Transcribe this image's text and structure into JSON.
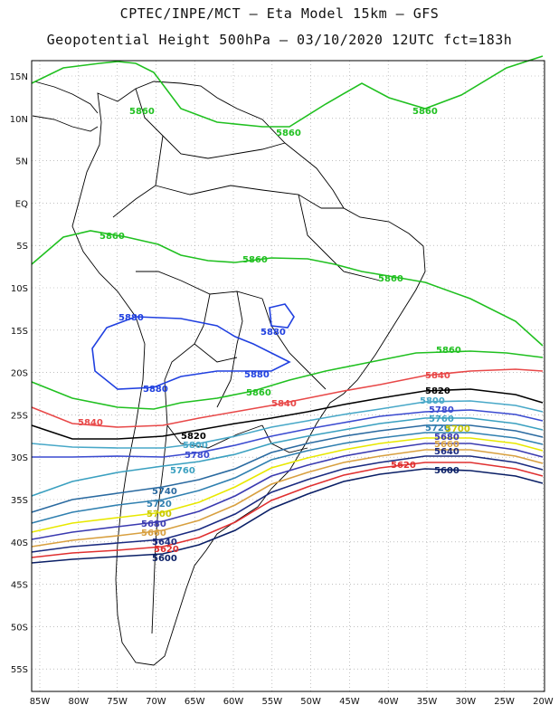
{
  "header": {
    "line1": "CPTEC/INPE/MCT –  Eta Model 15km – GFS",
    "line2": "Geopotential Height 500hPa – 03/10/2020 12UTC fct=183h"
  },
  "axes": {
    "lat_labels": [
      "15N",
      "10N",
      "5N",
      "EQ",
      "5S",
      "10S",
      "15S",
      "20S",
      "25S",
      "30S",
      "35S",
      "40S",
      "45S",
      "50S",
      "55S"
    ],
    "lon_labels": [
      "85W",
      "80W",
      "75W",
      "70W",
      "65W",
      "60W",
      "55W",
      "50W",
      "45W",
      "40W",
      "35W",
      "30W",
      "25W",
      "20W"
    ],
    "lat_range": [
      -58,
      16
    ],
    "lon_range": [
      -86,
      -20
    ]
  },
  "colors": {
    "5600": "#0a1f66",
    "5620": "#e03030",
    "5640": "#1a2a80",
    "5660": "#d8a040",
    "5680": "#3a3ab0",
    "5700": "#e8e800",
    "5720": "#3080b0",
    "5740": "#2a6aa0",
    "5760": "#3aa0c0",
    "5780": "#3a4ad0",
    "5800": "#48a8c8",
    "5820": "#000000",
    "5840": "#e84848",
    "5860": "#20c020",
    "5880": "#2040e0",
    "coast": "#000000",
    "grid": "#999999"
  },
  "contours": [
    {
      "value": "5860",
      "label_text": "5860"
    },
    {
      "value": "5880",
      "label_text": "5880"
    },
    {
      "value": "5840",
      "label_text": "5840"
    },
    {
      "value": "5820",
      "label_text": "5820"
    },
    {
      "value": "5800",
      "label_text": "5800"
    },
    {
      "value": "5780",
      "label_text": "5780"
    },
    {
      "value": "5760",
      "label_text": "5760"
    },
    {
      "value": "5740",
      "label_text": "5740"
    },
    {
      "value": "5720",
      "label_text": "5720"
    },
    {
      "value": "5700",
      "label_text": "5700"
    },
    {
      "value": "5680",
      "label_text": "5680"
    },
    {
      "value": "5660",
      "label_text": "5660"
    },
    {
      "value": "5640",
      "label_text": "5640"
    },
    {
      "value": "5620",
      "label_text": "5620"
    },
    {
      "value": "5600",
      "label_text": "5600"
    }
  ]
}
